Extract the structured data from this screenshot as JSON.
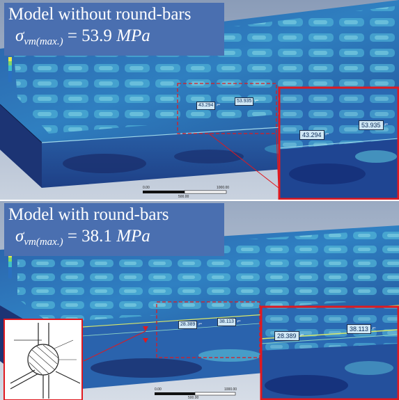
{
  "top_panel": {
    "title": "Model without round-bars",
    "equation_symbol": "σ",
    "equation_subscript": "vm(max.)",
    "equation_value": "= 53.9 ",
    "equation_unit": "MPa",
    "probe_small_1": "43.294",
    "probe_small_2": "53.935",
    "probe_zoom_1": "43.294",
    "probe_zoom_2": "53.935",
    "scale_start": "0.00",
    "scale_end": "1000.00",
    "scale_mid": "500.00"
  },
  "bottom_panel": {
    "title": "Model with round-bars",
    "equation_symbol": "σ",
    "equation_subscript": "vm(max.)",
    "equation_value": "= 38.1 ",
    "equation_unit": "MPa",
    "probe_small_1": "28.389",
    "probe_small_2": "38.113",
    "probe_zoom_1": "28.389",
    "probe_zoom_2": "38.113",
    "scale_start": "0.00",
    "scale_end": "1000.00",
    "scale_mid": "500.00"
  },
  "colors": {
    "title_background": "#4a6fb0",
    "highlight_frame": "#e0191f",
    "stress_low": "#1f3d87",
    "stress_mid": "#3fa7c9"
  }
}
